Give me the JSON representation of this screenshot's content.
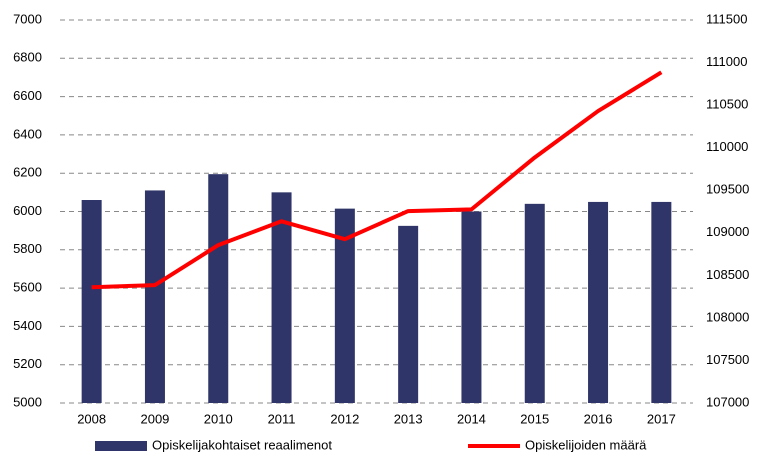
{
  "chart_data": {
    "type": "bar-line",
    "categories": [
      "2008",
      "2009",
      "2010",
      "2011",
      "2012",
      "2013",
      "2014",
      "2015",
      "2016",
      "2017"
    ],
    "series": [
      {
        "name": "Opiskelijakohtaiset reaalimenot",
        "type": "bar",
        "color": "#2f3568",
        "axis": "y",
        "values": [
          6060,
          6110,
          6195,
          6100,
          6015,
          5925,
          6000,
          6040,
          6050,
          6050
        ]
      },
      {
        "name": "Opiskelijoiden määrä",
        "type": "line",
        "color": "#ff0000",
        "axis": "y2",
        "values": [
          108360,
          108385,
          108855,
          109135,
          108925,
          109255,
          109275,
          109885,
          110430,
          110885
        ]
      }
    ],
    "ylim": [
      5000,
      7000
    ],
    "yticks": [
      5000,
      5200,
      5400,
      5600,
      5800,
      6000,
      6200,
      6400,
      6600,
      6800,
      7000
    ],
    "y2lim": [
      107000,
      111500
    ],
    "y2ticks": [
      107000,
      107500,
      108000,
      108500,
      109000,
      109500,
      110000,
      110500,
      111000,
      111500
    ],
    "grid": true,
    "legend": "bottom"
  }
}
